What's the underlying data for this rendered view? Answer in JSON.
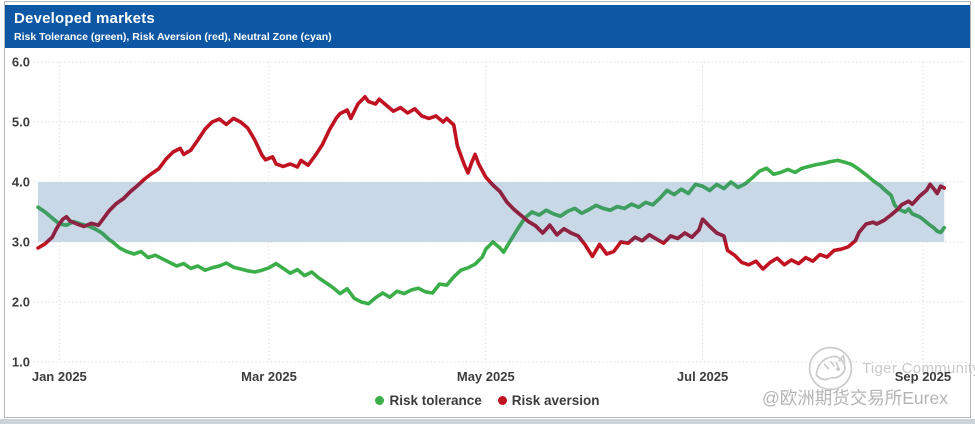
{
  "header": {
    "title": "Developed markets",
    "subtitle": "Risk Tolerance (green), Risk Aversion (red), Neutral Zone (cyan)"
  },
  "colors": {
    "header_bg": "#0d57a4",
    "header_text": "#ffffff",
    "tolerance": "#3bae4a",
    "aversion": "#c01322",
    "tolerance_in_zone": "#3f9d62",
    "aversion_in_zone": "#8d2342",
    "neutral_zone_fill": "#c9d8e6",
    "gridline": "#d9d9d9",
    "axis_text": "#3d3d3d",
    "watermark_text": "#c2c2c2"
  },
  "legend": {
    "items": [
      {
        "label": "Risk tolerance",
        "color_key": "tolerance"
      },
      {
        "label": "Risk aversion",
        "color_key": "aversion"
      }
    ]
  },
  "watermark": {
    "brand": "Tiger Community",
    "handle": "@欧洲期货交易所Eurex"
  },
  "chart_data": {
    "type": "line",
    "title": "Developed markets",
    "grid": "dotted",
    "legend_position": "bottom-center",
    "y_axis": {
      "min": 1,
      "max": 6,
      "ticks": [
        {
          "label": "6.0",
          "value": 6
        },
        {
          "label": "5.0",
          "value": 5
        },
        {
          "label": "4.0",
          "value": 4
        },
        {
          "label": "3.0",
          "value": 3
        },
        {
          "label": "2.0",
          "value": 2
        },
        {
          "label": "1.0",
          "value": 1
        }
      ]
    },
    "x_axis": {
      "day_min": 0,
      "day_max": 255,
      "ticks": [
        {
          "label": "Jan 2025",
          "day": 6
        },
        {
          "label": "Mar 2025",
          "day": 65
        },
        {
          "label": "May 2025",
          "day": 126
        },
        {
          "label": "Jul 2025",
          "day": 187
        },
        {
          "label": "Sep 2025",
          "day": 249
        }
      ]
    },
    "neutral_zone": {
      "from": 3.0,
      "to": 4.0
    },
    "series": [
      {
        "name": "Risk tolerance",
        "color_key": "tolerance",
        "points": [
          [
            0,
            3.58
          ],
          [
            2,
            3.5
          ],
          [
            4,
            3.4
          ],
          [
            6,
            3.3
          ],
          [
            8,
            3.28
          ],
          [
            10,
            3.34
          ],
          [
            12,
            3.3
          ],
          [
            14,
            3.27
          ],
          [
            16,
            3.22
          ],
          [
            18,
            3.15
          ],
          [
            20,
            3.04
          ],
          [
            21,
            3.0
          ],
          [
            23,
            2.9
          ],
          [
            25,
            2.84
          ],
          [
            27,
            2.8
          ],
          [
            29,
            2.84
          ],
          [
            31,
            2.74
          ],
          [
            33,
            2.78
          ],
          [
            35,
            2.72
          ],
          [
            37,
            2.66
          ],
          [
            39,
            2.6
          ],
          [
            41,
            2.64
          ],
          [
            43,
            2.56
          ],
          [
            45,
            2.6
          ],
          [
            47,
            2.53
          ],
          [
            49,
            2.57
          ],
          [
            51,
            2.6
          ],
          [
            53,
            2.65
          ],
          [
            55,
            2.58
          ],
          [
            57,
            2.55
          ],
          [
            59,
            2.52
          ],
          [
            61,
            2.5
          ],
          [
            63,
            2.53
          ],
          [
            65,
            2.57
          ],
          [
            67,
            2.64
          ],
          [
            69,
            2.56
          ],
          [
            71,
            2.48
          ],
          [
            73,
            2.54
          ],
          [
            75,
            2.44
          ],
          [
            77,
            2.5
          ],
          [
            79,
            2.4
          ],
          [
            81,
            2.32
          ],
          [
            83,
            2.24
          ],
          [
            85,
            2.14
          ],
          [
            87,
            2.22
          ],
          [
            89,
            2.06
          ],
          [
            91,
            2.0
          ],
          [
            93,
            1.97
          ],
          [
            95,
            2.07
          ],
          [
            97,
            2.15
          ],
          [
            99,
            2.08
          ],
          [
            101,
            2.18
          ],
          [
            103,
            2.14
          ],
          [
            105,
            2.2
          ],
          [
            107,
            2.23
          ],
          [
            109,
            2.17
          ],
          [
            111,
            2.15
          ],
          [
            113,
            2.3
          ],
          [
            115,
            2.28
          ],
          [
            117,
            2.42
          ],
          [
            119,
            2.53
          ],
          [
            121,
            2.57
          ],
          [
            123,
            2.63
          ],
          [
            125,
            2.75
          ],
          [
            126,
            2.88
          ],
          [
            128,
            3.0
          ],
          [
            130,
            2.9
          ],
          [
            131,
            2.83
          ],
          [
            133,
            3.03
          ],
          [
            135,
            3.22
          ],
          [
            137,
            3.4
          ],
          [
            139,
            3.5
          ],
          [
            141,
            3.45
          ],
          [
            143,
            3.53
          ],
          [
            145,
            3.47
          ],
          [
            147,
            3.43
          ],
          [
            149,
            3.51
          ],
          [
            151,
            3.56
          ],
          [
            153,
            3.48
          ],
          [
            155,
            3.54
          ],
          [
            157,
            3.61
          ],
          [
            159,
            3.56
          ],
          [
            161,
            3.53
          ],
          [
            163,
            3.59
          ],
          [
            165,
            3.56
          ],
          [
            167,
            3.63
          ],
          [
            169,
            3.58
          ],
          [
            171,
            3.66
          ],
          [
            173,
            3.62
          ],
          [
            175,
            3.73
          ],
          [
            177,
            3.86
          ],
          [
            179,
            3.79
          ],
          [
            181,
            3.88
          ],
          [
            183,
            3.81
          ],
          [
            185,
            3.96
          ],
          [
            187,
            3.93
          ],
          [
            189,
            3.86
          ],
          [
            191,
            3.96
          ],
          [
            193,
            3.89
          ],
          [
            195,
            4.0
          ],
          [
            197,
            3.91
          ],
          [
            199,
            3.97
          ],
          [
            201,
            4.07
          ],
          [
            203,
            4.18
          ],
          [
            205,
            4.23
          ],
          [
            207,
            4.13
          ],
          [
            209,
            4.16
          ],
          [
            211,
            4.21
          ],
          [
            213,
            4.16
          ],
          [
            215,
            4.23
          ],
          [
            217,
            4.26
          ],
          [
            219,
            4.29
          ],
          [
            221,
            4.31
          ],
          [
            223,
            4.34
          ],
          [
            225,
            4.36
          ],
          [
            227,
            4.33
          ],
          [
            229,
            4.29
          ],
          [
            231,
            4.21
          ],
          [
            233,
            4.12
          ],
          [
            235,
            4.02
          ],
          [
            237,
            3.94
          ],
          [
            238,
            3.88
          ],
          [
            240,
            3.78
          ],
          [
            241,
            3.62
          ],
          [
            242,
            3.55
          ],
          [
            244,
            3.5
          ],
          [
            245,
            3.55
          ],
          [
            246,
            3.47
          ],
          [
            248,
            3.42
          ],
          [
            249,
            3.38
          ],
          [
            250,
            3.33
          ],
          [
            251,
            3.28
          ],
          [
            252,
            3.24
          ],
          [
            253,
            3.18
          ],
          [
            254,
            3.16
          ],
          [
            255,
            3.24
          ]
        ]
      },
      {
        "name": "Risk aversion",
        "color_key": "aversion",
        "points": [
          [
            0,
            2.9
          ],
          [
            2,
            2.97
          ],
          [
            4,
            3.08
          ],
          [
            5,
            3.2
          ],
          [
            6,
            3.3
          ],
          [
            7,
            3.38
          ],
          [
            8,
            3.42
          ],
          [
            9,
            3.35
          ],
          [
            11,
            3.3
          ],
          [
            13,
            3.26
          ],
          [
            15,
            3.31
          ],
          [
            17,
            3.28
          ],
          [
            18,
            3.36
          ],
          [
            20,
            3.52
          ],
          [
            22,
            3.64
          ],
          [
            24,
            3.72
          ],
          [
            26,
            3.84
          ],
          [
            28,
            3.94
          ],
          [
            30,
            4.05
          ],
          [
            32,
            4.14
          ],
          [
            34,
            4.22
          ],
          [
            36,
            4.38
          ],
          [
            38,
            4.5
          ],
          [
            40,
            4.56
          ],
          [
            41,
            4.46
          ],
          [
            43,
            4.53
          ],
          [
            45,
            4.7
          ],
          [
            47,
            4.88
          ],
          [
            49,
            5.0
          ],
          [
            51,
            5.05
          ],
          [
            53,
            4.96
          ],
          [
            55,
            5.06
          ],
          [
            57,
            5.0
          ],
          [
            59,
            4.9
          ],
          [
            61,
            4.7
          ],
          [
            63,
            4.45
          ],
          [
            64,
            4.37
          ],
          [
            66,
            4.42
          ],
          [
            67,
            4.3
          ],
          [
            69,
            4.26
          ],
          [
            71,
            4.3
          ],
          [
            73,
            4.25
          ],
          [
            74,
            4.36
          ],
          [
            76,
            4.28
          ],
          [
            78,
            4.44
          ],
          [
            80,
            4.62
          ],
          [
            82,
            4.87
          ],
          [
            84,
            5.07
          ],
          [
            85,
            5.14
          ],
          [
            87,
            5.2
          ],
          [
            88,
            5.06
          ],
          [
            90,
            5.3
          ],
          [
            92,
            5.42
          ],
          [
            93,
            5.34
          ],
          [
            95,
            5.3
          ],
          [
            96,
            5.38
          ],
          [
            98,
            5.28
          ],
          [
            100,
            5.18
          ],
          [
            102,
            5.24
          ],
          [
            104,
            5.15
          ],
          [
            106,
            5.22
          ],
          [
            108,
            5.1
          ],
          [
            110,
            5.06
          ],
          [
            112,
            5.1
          ],
          [
            114,
            5.0
          ],
          [
            115,
            5.06
          ],
          [
            117,
            4.95
          ],
          [
            118,
            4.6
          ],
          [
            120,
            4.28
          ],
          [
            121,
            4.15
          ],
          [
            122,
            4.32
          ],
          [
            123,
            4.46
          ],
          [
            124,
            4.3
          ],
          [
            126,
            4.08
          ],
          [
            128,
            3.95
          ],
          [
            130,
            3.84
          ],
          [
            132,
            3.66
          ],
          [
            134,
            3.54
          ],
          [
            136,
            3.44
          ],
          [
            138,
            3.34
          ],
          [
            140,
            3.27
          ],
          [
            142,
            3.15
          ],
          [
            144,
            3.28
          ],
          [
            146,
            3.12
          ],
          [
            148,
            3.22
          ],
          [
            150,
            3.15
          ],
          [
            152,
            3.1
          ],
          [
            154,
            2.95
          ],
          [
            156,
            2.76
          ],
          [
            158,
            2.96
          ],
          [
            160,
            2.8
          ],
          [
            162,
            2.84
          ],
          [
            164,
            3.0
          ],
          [
            166,
            2.98
          ],
          [
            168,
            3.08
          ],
          [
            170,
            3.02
          ],
          [
            172,
            3.12
          ],
          [
            174,
            3.05
          ],
          [
            176,
            2.98
          ],
          [
            178,
            3.1
          ],
          [
            180,
            3.06
          ],
          [
            182,
            3.15
          ],
          [
            184,
            3.08
          ],
          [
            186,
            3.2
          ],
          [
            187,
            3.38
          ],
          [
            189,
            3.26
          ],
          [
            191,
            3.15
          ],
          [
            193,
            3.1
          ],
          [
            194,
            2.86
          ],
          [
            196,
            2.78
          ],
          [
            198,
            2.66
          ],
          [
            200,
            2.62
          ],
          [
            202,
            2.68
          ],
          [
            204,
            2.55
          ],
          [
            206,
            2.66
          ],
          [
            208,
            2.73
          ],
          [
            210,
            2.62
          ],
          [
            212,
            2.7
          ],
          [
            214,
            2.64
          ],
          [
            216,
            2.74
          ],
          [
            218,
            2.68
          ],
          [
            220,
            2.79
          ],
          [
            222,
            2.75
          ],
          [
            224,
            2.86
          ],
          [
            226,
            2.88
          ],
          [
            228,
            2.92
          ],
          [
            230,
            3.02
          ],
          [
            231,
            3.16
          ],
          [
            233,
            3.3
          ],
          [
            235,
            3.33
          ],
          [
            236,
            3.3
          ],
          [
            238,
            3.36
          ],
          [
            240,
            3.45
          ],
          [
            242,
            3.55
          ],
          [
            243,
            3.62
          ],
          [
            245,
            3.68
          ],
          [
            246,
            3.63
          ],
          [
            248,
            3.76
          ],
          [
            250,
            3.86
          ],
          [
            251,
            3.96
          ],
          [
            252,
            3.89
          ],
          [
            253,
            3.81
          ],
          [
            254,
            3.93
          ],
          [
            255,
            3.9
          ]
        ]
      }
    ]
  }
}
